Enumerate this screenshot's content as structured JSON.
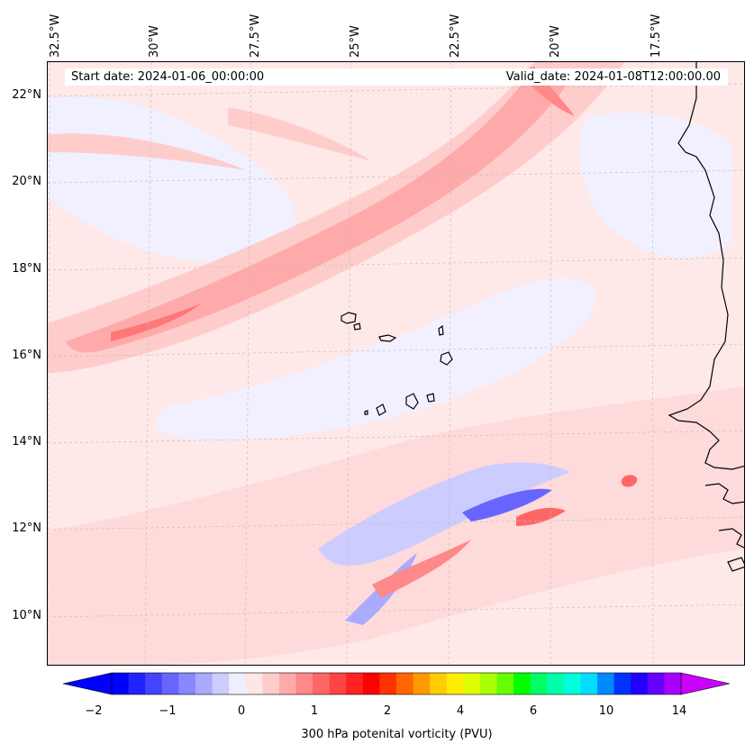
{
  "map": {
    "top_labels": [
      "32.5°W",
      "30°W",
      "27.5°W",
      "25°W",
      "22.5°W",
      "20°W",
      "17.5°W"
    ],
    "lat_labels": [
      "22°N",
      "20°N",
      "18°N",
      "16°N",
      "14°N",
      "12°N",
      "10°N"
    ],
    "start_date": "Start date: 2024-01-06_00:00:00",
    "valid_date": "Valid_date: 2024-01-08T12:00:00.00"
  },
  "colorbar": {
    "ticks": [
      "−2",
      "−1",
      "0",
      "1",
      "2",
      "4",
      "6",
      "10",
      "14"
    ],
    "label": "300 hPa potenital vorticity (PVU)",
    "colors": [
      "#0000ff",
      "#2222ff",
      "#4444ff",
      "#6666ff",
      "#8888ff",
      "#aaaaff",
      "#ccccff",
      "#eeeeff",
      "#ffe6e6",
      "#ffcccc",
      "#ffaaaa",
      "#ff8888",
      "#ff6666",
      "#ff4444",
      "#ff2222",
      "#ff0000",
      "#ff3300",
      "#ff6600",
      "#ff9900",
      "#ffcc00",
      "#ffee00",
      "#ddff00",
      "#aaff00",
      "#66ff00",
      "#00ff00",
      "#00ff66",
      "#00ffaa",
      "#00ffdd",
      "#00ddff",
      "#0088ff",
      "#0033ff",
      "#2200ff",
      "#6600ff",
      "#aa00ff"
    ],
    "min_arrow_color": "#0000ff",
    "max_arrow_color": "#cc00ff"
  }
}
